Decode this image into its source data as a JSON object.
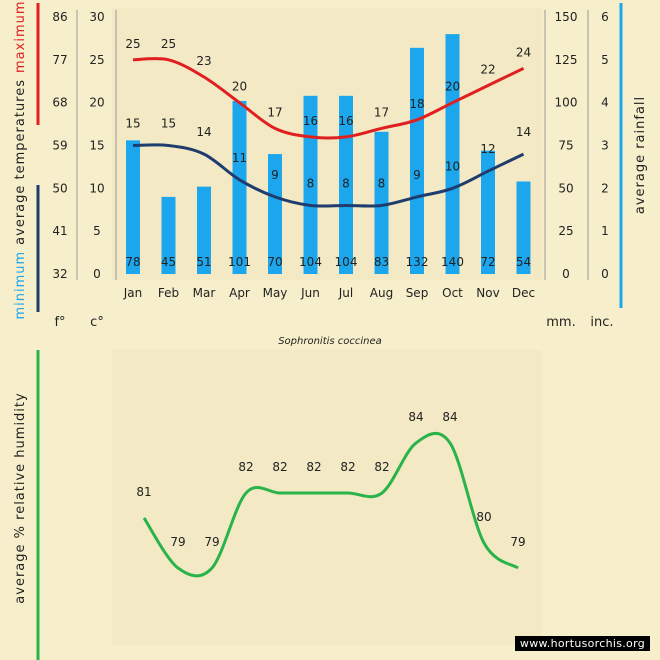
{
  "site": "www.hortusorchis.org",
  "species": "Sophronitis coccinea",
  "colors": {
    "background": "#f7efcb",
    "panel": "#f3e9c4",
    "max_temp": "#e02020",
    "min_temp": "#1f3c6e",
    "rain": "#1ba6ee",
    "humidity": "#2ab34a"
  },
  "labels": {
    "maximum": "maximum",
    "average_temperatures": "average  temperatures",
    "minimum": "minimum",
    "average_rainfall": "average rainfall",
    "humidity_axis": "average %  relative humidity",
    "unit_f": "f°",
    "unit_c": "c°",
    "unit_mm": "mm.",
    "unit_inc": "inc."
  },
  "chart_data": [
    {
      "type": "bar+line",
      "categories": [
        "Jan",
        "Feb",
        "Mar",
        "Apr",
        "May",
        "Jun",
        "Jul",
        "Aug",
        "Sep",
        "Oct",
        "Nov",
        "Dec"
      ],
      "rainfall_mm": [
        78,
        45,
        51,
        101,
        70,
        104,
        104,
        83,
        132,
        140,
        72,
        54
      ],
      "max_temp_c": [
        25,
        25,
        23,
        20,
        17,
        16,
        16,
        17,
        18,
        20,
        22,
        24
      ],
      "min_temp_c": [
        15,
        15,
        14,
        11,
        9,
        8,
        8,
        8,
        9,
        10,
        12,
        14
      ],
      "axes": {
        "fahrenheit_ticks": [
          32,
          41,
          50,
          59,
          68,
          77,
          86
        ],
        "celsius_ticks": [
          0,
          5,
          10,
          15,
          20,
          25,
          30
        ],
        "mm_ticks": [
          0,
          25,
          50,
          75,
          100,
          125,
          150
        ],
        "inch_ticks": [
          0,
          1,
          2,
          3,
          4,
          5,
          6
        ]
      },
      "temp_range_c": [
        0,
        30
      ],
      "rain_range_mm": [
        0,
        150
      ]
    },
    {
      "type": "line",
      "categories": [
        "Jan",
        "Feb",
        "Mar",
        "Apr",
        "May",
        "Jun",
        "Jul",
        "Aug",
        "Sep",
        "Oct",
        "Nov",
        "Dec"
      ],
      "humidity_pct": [
        81,
        79,
        79,
        82,
        82,
        82,
        82,
        82,
        84,
        84,
        80,
        79
      ]
    }
  ]
}
